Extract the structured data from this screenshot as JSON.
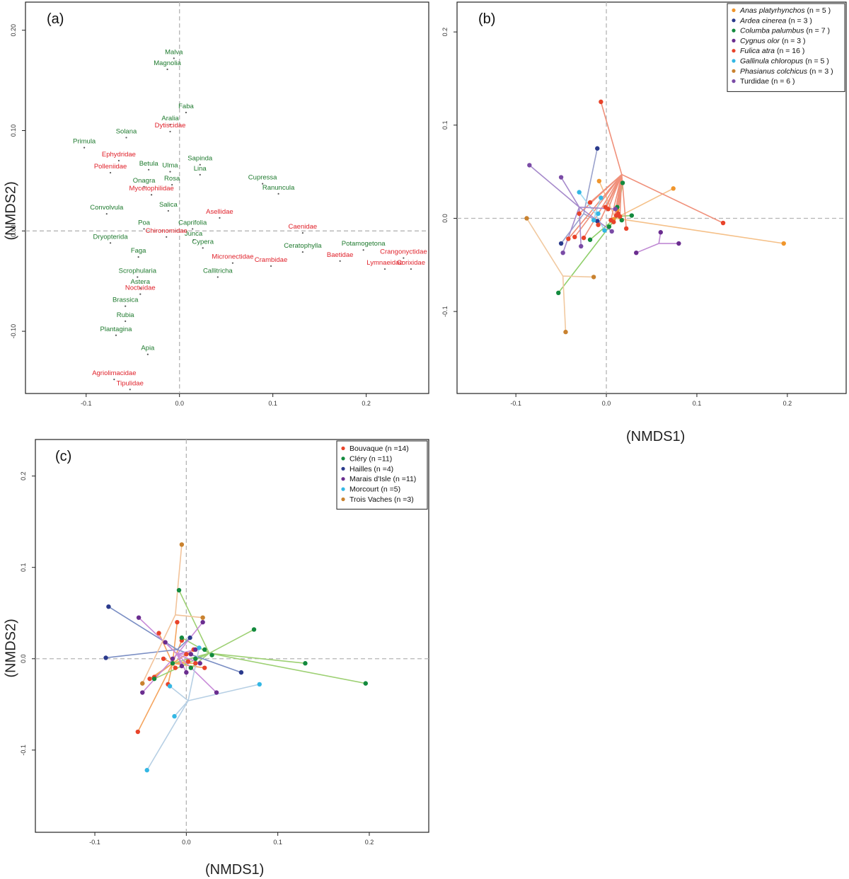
{
  "colors": {
    "green_label": "#1e7a2e",
    "red_label": "#e0222b",
    "axis": "#333333",
    "dash": "#b5b5b5"
  },
  "chart_data": [
    {
      "id": "a",
      "panel_label": "(a)",
      "type": "scatter",
      "title": "",
      "xlabel": "",
      "ylabel": "(NMDS2)",
      "xlim": [
        -0.165,
        0.267
      ],
      "ylim": [
        -0.162,
        0.228
      ],
      "xticks": [
        -0.1,
        0.0,
        0.1,
        0.2
      ],
      "xtick_labels": [
        "-0.1",
        "0.0",
        "0.1",
        "0.2"
      ],
      "yticks": [
        -0.1,
        0.0,
        0.1,
        0.2
      ],
      "ytick_labels": [
        "-0.10",
        "0.00",
        "0.10",
        "0.20"
      ],
      "zero_lines": {
        "x": 0.0,
        "y": 0.0
      },
      "series": [
        {
          "name": "plants",
          "color": "#1e7a2e",
          "points": [
            {
              "label": "Malva",
              "x": -0.006,
              "y": 0.172
            },
            {
              "label": "Magnolia",
              "x": -0.013,
              "y": 0.161
            },
            {
              "label": "Faba",
              "x": 0.007,
              "y": 0.118
            },
            {
              "label": "Aralia",
              "x": -0.01,
              "y": 0.106
            },
            {
              "label": "Primula",
              "x": -0.102,
              "y": 0.083
            },
            {
              "label": "Solana",
              "x": -0.057,
              "y": 0.093
            },
            {
              "label": "Sapinda",
              "x": 0.022,
              "y": 0.066
            },
            {
              "label": "Betula",
              "x": -0.033,
              "y": 0.061
            },
            {
              "label": "Ulma",
              "x": -0.01,
              "y": 0.059
            },
            {
              "label": "Rosa",
              "x": -0.008,
              "y": 0.046
            },
            {
              "label": "Lina",
              "x": 0.022,
              "y": 0.056
            },
            {
              "label": "Cupressa",
              "x": 0.089,
              "y": 0.047
            },
            {
              "label": "Onagra",
              "x": -0.038,
              "y": 0.044
            },
            {
              "label": "Ranuncula",
              "x": 0.106,
              "y": 0.037
            },
            {
              "label": "Convolvula",
              "x": -0.078,
              "y": 0.017
            },
            {
              "label": "Poa",
              "x": -0.038,
              "y": 0.002
            },
            {
              "label": "Salica",
              "x": -0.012,
              "y": 0.02
            },
            {
              "label": "Caprifolia",
              "x": 0.014,
              "y": 0.002
            },
            {
              "label": "Junca",
              "x": 0.015,
              "y": -0.009
            },
            {
              "label": "Dryopterida",
              "x": -0.074,
              "y": -0.012
            },
            {
              "label": "Potamogetona",
              "x": 0.197,
              "y": -0.019
            },
            {
              "label": "Cypera",
              "x": 0.025,
              "y": -0.017
            },
            {
              "label": "Ceratophylla",
              "x": 0.132,
              "y": -0.021
            },
            {
              "label": "Faga",
              "x": -0.044,
              "y": -0.026
            },
            {
              "label": "Callitricha",
              "x": 0.041,
              "y": -0.046
            },
            {
              "label": "Scrophularia",
              "x": -0.045,
              "y": -0.046
            },
            {
              "label": "Astera",
              "x": -0.042,
              "y": -0.057
            },
            {
              "label": "Brassica",
              "x": -0.058,
              "y": -0.075
            },
            {
              "label": "Rubia",
              "x": -0.058,
              "y": -0.09
            },
            {
              "label": "Plantagina",
              "x": -0.068,
              "y": -0.104
            },
            {
              "label": "Apia",
              "x": -0.034,
              "y": -0.123
            }
          ]
        },
        {
          "name": "invertebrates",
          "color": "#e0222b",
          "points": [
            {
              "label": "Dytiscidae",
              "x": -0.01,
              "y": 0.099
            },
            {
              "label": "Ephydridae",
              "x": -0.065,
              "y": 0.07
            },
            {
              "label": "Polleniidae",
              "x": -0.074,
              "y": 0.058
            },
            {
              "label": "Mycetophilidae",
              "x": -0.03,
              "y": 0.036
            },
            {
              "label": "Asellidae",
              "x": 0.043,
              "y": 0.013
            },
            {
              "label": "Caenidae",
              "x": 0.132,
              "y": -0.002
            },
            {
              "label": "Chironomidae",
              "x": -0.014,
              "y": -0.006
            },
            {
              "label": "Baetidae",
              "x": 0.172,
              "y": -0.03
            },
            {
              "label": "Crangonyctidae",
              "x": 0.24,
              "y": -0.027
            },
            {
              "label": "Micronectidae",
              "x": 0.057,
              "y": -0.032
            },
            {
              "label": "Lymnaeidae",
              "x": 0.22,
              "y": -0.038
            },
            {
              "label": "Corixidae",
              "x": 0.248,
              "y": -0.038
            },
            {
              "label": "Crambidae",
              "x": 0.098,
              "y": -0.035
            },
            {
              "label": "Noctuidae",
              "x": -0.042,
              "y": -0.063
            },
            {
              "label": "Agriolimacidae",
              "x": -0.07,
              "y": -0.148
            },
            {
              "label": "Tipulidae",
              "x": -0.053,
              "y": -0.158
            }
          ]
        }
      ]
    },
    {
      "id": "b",
      "panel_label": "(b)",
      "type": "scatter",
      "title": "",
      "xlabel": "(NMDS1)",
      "ylabel": "",
      "xlim": [
        -0.165,
        0.265
      ],
      "ylim": [
        -0.188,
        0.232
      ],
      "xticks": [
        -0.1,
        0.0,
        0.1,
        0.2
      ],
      "xtick_labels": [
        "-0.1",
        "0.0",
        "0.1",
        "0.2"
      ],
      "yticks": [
        -0.1,
        0.0,
        0.1,
        0.2
      ],
      "ytick_labels": [
        "-0.1",
        "0.0",
        "0.1",
        "0.2"
      ],
      "zero_lines": {
        "x": 0.0,
        "y": 0.0
      },
      "legend": {
        "position": "top-right",
        "entries": [
          {
            "species": "Anas platyrhynchos",
            "count": "(n = 5 )",
            "color": "#f0952b",
            "italic": true
          },
          {
            "species": "Ardea cinerea",
            "count": "(n = 3 )",
            "color": "#2a3a8c",
            "italic": true
          },
          {
            "species": "Columba palumbus",
            "count": "(n = 7 )",
            "color": "#138a3e",
            "italic": true
          },
          {
            "species": "Cygnus olor",
            "count": "(n = 3 )",
            "color": "#6a2d8f",
            "italic": true
          },
          {
            "species": "Fulica atra",
            "count": "(n = 16 )",
            "color": "#e8432a",
            "italic": true
          },
          {
            "species": "Gallinula chloropus",
            "count": "(n = 5 )",
            "color": "#33b7e4",
            "italic": true
          },
          {
            "species": "Phasianus colchicus",
            "count": "(n = 3 )",
            "color": "#c9822f",
            "italic": true
          },
          {
            "species": "Turdidae",
            "count": "(n = 6 )",
            "color": "#7a4ba6",
            "italic": false
          }
        ]
      },
      "groups": [
        {
          "name": "Anas platyrhynchos",
          "color": "#f0952b",
          "line_color": "#f5c088",
          "centroid": [
            0.01,
            0.0
          ],
          "points": [
            [
              -0.008,
              0.04
            ],
            [
              0.074,
              0.032
            ],
            [
              0.196,
              -0.027
            ],
            [
              0.012,
              0.009
            ],
            [
              0.008,
              -0.001
            ]
          ]
        },
        {
          "name": "Ardea cinerea",
          "color": "#2a3a8c",
          "line_color": "#9aa2cc",
          "centroid": [
            -0.025,
            0.005
          ],
          "points": [
            [
              -0.01,
              0.075
            ],
            [
              -0.05,
              -0.027
            ],
            [
              -0.01,
              -0.003
            ]
          ]
        },
        {
          "name": "Columba palumbus",
          "color": "#138a3e",
          "line_color": "#8fcf6a",
          "centroid": [
            0.012,
            0.002
          ],
          "points": [
            [
              0.018,
              0.038
            ],
            [
              0.028,
              0.003
            ],
            [
              -0.053,
              -0.08
            ],
            [
              -0.018,
              -0.023
            ],
            [
              0.003,
              -0.009
            ],
            [
              0.012,
              0.012
            ],
            [
              0.017,
              -0.002
            ]
          ]
        },
        {
          "name": "Cygnus olor",
          "color": "#6a2d8f",
          "line_color": "#c08ad4",
          "centroid": [
            0.058,
            -0.027
          ],
          "points": [
            [
              0.06,
              -0.015
            ],
            [
              0.08,
              -0.027
            ],
            [
              0.033,
              -0.037
            ]
          ]
        },
        {
          "name": "Fulica atra",
          "color": "#e8432a",
          "line_color": "#f0907a",
          "centroid": [
            0.017,
            0.047
          ],
          "points": [
            [
              -0.006,
              0.125
            ],
            [
              0.129,
              -0.005
            ],
            [
              0.022,
              -0.011
            ],
            [
              0.015,
              0.002
            ],
            [
              -0.025,
              -0.021
            ],
            [
              -0.03,
              0.005
            ],
            [
              -0.018,
              0.017
            ],
            [
              -0.042,
              -0.022
            ],
            [
              0.002,
              0.01
            ],
            [
              0.008,
              -0.004
            ],
            [
              -0.001,
              0.012
            ],
            [
              0.013,
              0.005
            ],
            [
              -0.009,
              -0.007
            ],
            [
              0.011,
              0.003
            ],
            [
              0.005,
              -0.002
            ],
            [
              -0.035,
              -0.02
            ]
          ]
        },
        {
          "name": "Gallinula chloropus",
          "color": "#33b7e4",
          "line_color": "#9fd9ef",
          "centroid": [
            -0.012,
            0.005
          ],
          "points": [
            [
              -0.03,
              0.028
            ],
            [
              -0.006,
              0.022
            ],
            [
              -0.009,
              0.005
            ],
            [
              -0.002,
              -0.013
            ],
            [
              -0.014,
              -0.002
            ]
          ]
        },
        {
          "name": "Phasianus colchicus",
          "color": "#c9822f",
          "line_color": "#f1c9a0",
          "centroid": [
            -0.048,
            -0.062
          ],
          "points": [
            [
              -0.088,
              0.0
            ],
            [
              -0.045,
              -0.122
            ],
            [
              -0.014,
              -0.063
            ]
          ]
        },
        {
          "name": "Turdidae",
          "color": "#7a4ba6",
          "line_color": "#a68acb",
          "centroid": [
            -0.03,
            0.012
          ],
          "points": [
            [
              -0.085,
              0.057
            ],
            [
              -0.05,
              0.044
            ],
            [
              -0.048,
              -0.037
            ],
            [
              -0.028,
              -0.03
            ],
            [
              0.006,
              -0.014
            ],
            [
              0.01,
              0.01
            ]
          ]
        }
      ]
    },
    {
      "id": "c",
      "panel_label": "(c)",
      "type": "scatter",
      "title": "",
      "xlabel": "(NMDS1)",
      "ylabel": "(NMDS2)",
      "xlim": [
        -0.165,
        0.265
      ],
      "ylim": [
        -0.19,
        0.24
      ],
      "xticks": [
        -0.1,
        0.0,
        0.1,
        0.2
      ],
      "xtick_labels": [
        "-0.1",
        "0.0",
        "0.1",
        "0.2"
      ],
      "yticks": [
        -0.1,
        0.0,
        0.1,
        0.2
      ],
      "ytick_labels": [
        "-0.1",
        "0.0",
        "0.1",
        "0.2"
      ],
      "zero_lines": {
        "x": 0.0,
        "y": 0.0
      },
      "legend": {
        "position": "top-right",
        "entries": [
          {
            "label": "Bouvaque (n =14)",
            "color": "#e8432a"
          },
          {
            "label": "Cléry (n =11)",
            "color": "#138a3e"
          },
          {
            "label": "Hailles (n =4)",
            "color": "#2a3a8c"
          },
          {
            "label": "Marais d'Isle (n =11)",
            "color": "#6a2d8f"
          },
          {
            "label": "Morcourt (n =5)",
            "color": "#33b7e4"
          },
          {
            "label": "Trois Vaches (n =3)",
            "color": "#c9822f"
          }
        ]
      },
      "groups": [
        {
          "name": "Bouvaque",
          "color": "#e8432a",
          "line_color": "#f5a55f",
          "centroid": [
            -0.015,
            -0.005
          ],
          "points": [
            [
              -0.053,
              -0.08
            ],
            [
              -0.04,
              -0.022
            ],
            [
              -0.03,
              0.028
            ],
            [
              -0.01,
              0.04
            ],
            [
              -0.025,
              0.0
            ],
            [
              -0.02,
              -0.028
            ],
            [
              0.002,
              -0.003
            ],
            [
              0.02,
              -0.01
            ],
            [
              -0.005,
              0.02
            ],
            [
              0.01,
              -0.005
            ],
            [
              -0.035,
              -0.02
            ],
            [
              0.0,
              0.005
            ],
            [
              -0.012,
              -0.01
            ],
            [
              0.008,
              0.01
            ]
          ]
        },
        {
          "name": "Cléry",
          "color": "#138a3e",
          "line_color": "#9dd073",
          "centroid": [
            0.025,
            0.006
          ],
          "points": [
            [
              -0.008,
              0.075
            ],
            [
              0.074,
              0.032
            ],
            [
              0.13,
              -0.005
            ],
            [
              0.196,
              -0.027
            ],
            [
              0.028,
              0.004
            ],
            [
              -0.035,
              -0.022
            ],
            [
              -0.005,
              0.023
            ],
            [
              0.01,
              0.0
            ],
            [
              -0.015,
              -0.005
            ],
            [
              0.02,
              0.01
            ],
            [
              0.005,
              -0.01
            ]
          ]
        },
        {
          "name": "Hailles",
          "color": "#2a3a8c",
          "line_color": "#7a8ec4",
          "centroid": [
            -0.01,
            0.01
          ],
          "points": [
            [
              -0.085,
              0.057
            ],
            [
              -0.088,
              0.001
            ],
            [
              0.06,
              -0.015
            ],
            [
              0.004,
              0.023
            ]
          ]
        },
        {
          "name": "Marais d'Isle",
          "color": "#6a2d8f",
          "line_color": "#c78ad8",
          "centroid": [
            -0.01,
            0.005
          ],
          "points": [
            [
              -0.052,
              0.045
            ],
            [
              -0.048,
              -0.037
            ],
            [
              0.018,
              0.04
            ],
            [
              0.033,
              -0.037
            ],
            [
              -0.023,
              0.018
            ],
            [
              0.0,
              -0.015
            ],
            [
              0.01,
              0.01
            ],
            [
              -0.015,
              0.0
            ],
            [
              0.005,
              0.005
            ],
            [
              0.015,
              -0.005
            ],
            [
              -0.005,
              -0.008
            ]
          ]
        },
        {
          "name": "Morcourt",
          "color": "#33b7e4",
          "line_color": "#b6cfe4",
          "centroid": [
            0.002,
            -0.046
          ],
          "points": [
            [
              0.08,
              -0.028
            ],
            [
              -0.043,
              -0.122
            ],
            [
              -0.013,
              -0.063
            ],
            [
              -0.018,
              -0.03
            ],
            [
              0.014,
              0.012
            ]
          ]
        },
        {
          "name": "Trois Vaches",
          "color": "#c9822f",
          "line_color": "#f2c39a",
          "centroid": [
            -0.012,
            0.048
          ],
          "points": [
            [
              -0.005,
              0.125
            ],
            [
              0.018,
              0.045
            ],
            [
              -0.048,
              -0.027
            ]
          ]
        }
      ]
    }
  ]
}
